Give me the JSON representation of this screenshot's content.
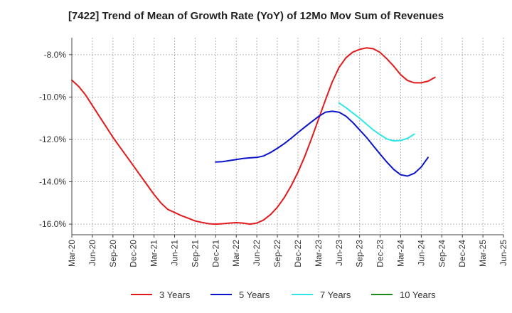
{
  "chart_data": {
    "type": "line",
    "title": "[7422]  Trend of Mean of Growth Rate (YoY) of 12Mo Mov Sum of Revenues",
    "xlabel": "",
    "ylabel": "",
    "ylim": [
      -16.5,
      -7.2
    ],
    "y_ticks": [
      -16.0,
      -14.0,
      -12.0,
      -10.0,
      -8.0
    ],
    "y_tick_labels": [
      "-16.0%",
      "-14.0%",
      "-12.0%",
      "-10.0%",
      "-8.0%"
    ],
    "x_tick_labels": [
      "Mar-20",
      "Jun-20",
      "Sep-20",
      "Dec-20",
      "Mar-21",
      "Jun-21",
      "Sep-21",
      "Dec-21",
      "Mar-22",
      "Jun-22",
      "Sep-22",
      "Dec-22",
      "Mar-23",
      "Jun-23",
      "Sep-23",
      "Dec-23",
      "Mar-24",
      "Jun-24",
      "Sep-24",
      "Dec-24",
      "Mar-25",
      "Jun-25"
    ],
    "grid": true,
    "legend_position": "bottom",
    "series": [
      {
        "name": "3 Years",
        "color": "#e31a1c",
        "start_index": 0,
        "values": [
          -9.2,
          -9.5,
          -9.9,
          -10.4,
          -10.9,
          -11.4,
          -11.9,
          -12.35,
          -12.8,
          -13.25,
          -13.7,
          -14.15,
          -14.6,
          -15.0,
          -15.3,
          -15.45,
          -15.6,
          -15.72,
          -15.85,
          -15.92,
          -15.98,
          -16.0,
          -15.98,
          -15.95,
          -15.93,
          -15.95,
          -16.0,
          -15.95,
          -15.8,
          -15.55,
          -15.2,
          -14.75,
          -14.2,
          -13.55,
          -12.8,
          -11.95,
          -11.05,
          -10.15,
          -9.3,
          -8.6,
          -8.15,
          -7.88,
          -7.75,
          -7.68,
          -7.72,
          -7.9,
          -8.2,
          -8.55,
          -8.95,
          -9.22,
          -9.33,
          -9.33,
          -9.25,
          -9.07
        ]
      },
      {
        "name": "5 Years",
        "color": "#0a14c8",
        "start_index": 21,
        "values": [
          -13.07,
          -13.05,
          -13.0,
          -12.95,
          -12.9,
          -12.87,
          -12.85,
          -12.78,
          -12.62,
          -12.42,
          -12.2,
          -11.95,
          -11.68,
          -11.42,
          -11.17,
          -10.92,
          -10.72,
          -10.67,
          -10.72,
          -10.9,
          -11.2,
          -11.55,
          -11.9,
          -12.3,
          -12.7,
          -13.08,
          -13.42,
          -13.67,
          -13.73,
          -13.6,
          -13.3,
          -12.85
        ]
      },
      {
        "name": "7 Years",
        "color": "#33e5e5",
        "start_index": 39,
        "values": [
          -10.28,
          -10.5,
          -10.75,
          -11.0,
          -11.28,
          -11.55,
          -11.78,
          -11.98,
          -12.07,
          -12.05,
          -11.95,
          -11.75
        ]
      },
      {
        "name": "10 Years",
        "color": "#1a8a1a",
        "start_index": 0,
        "values": []
      }
    ]
  }
}
